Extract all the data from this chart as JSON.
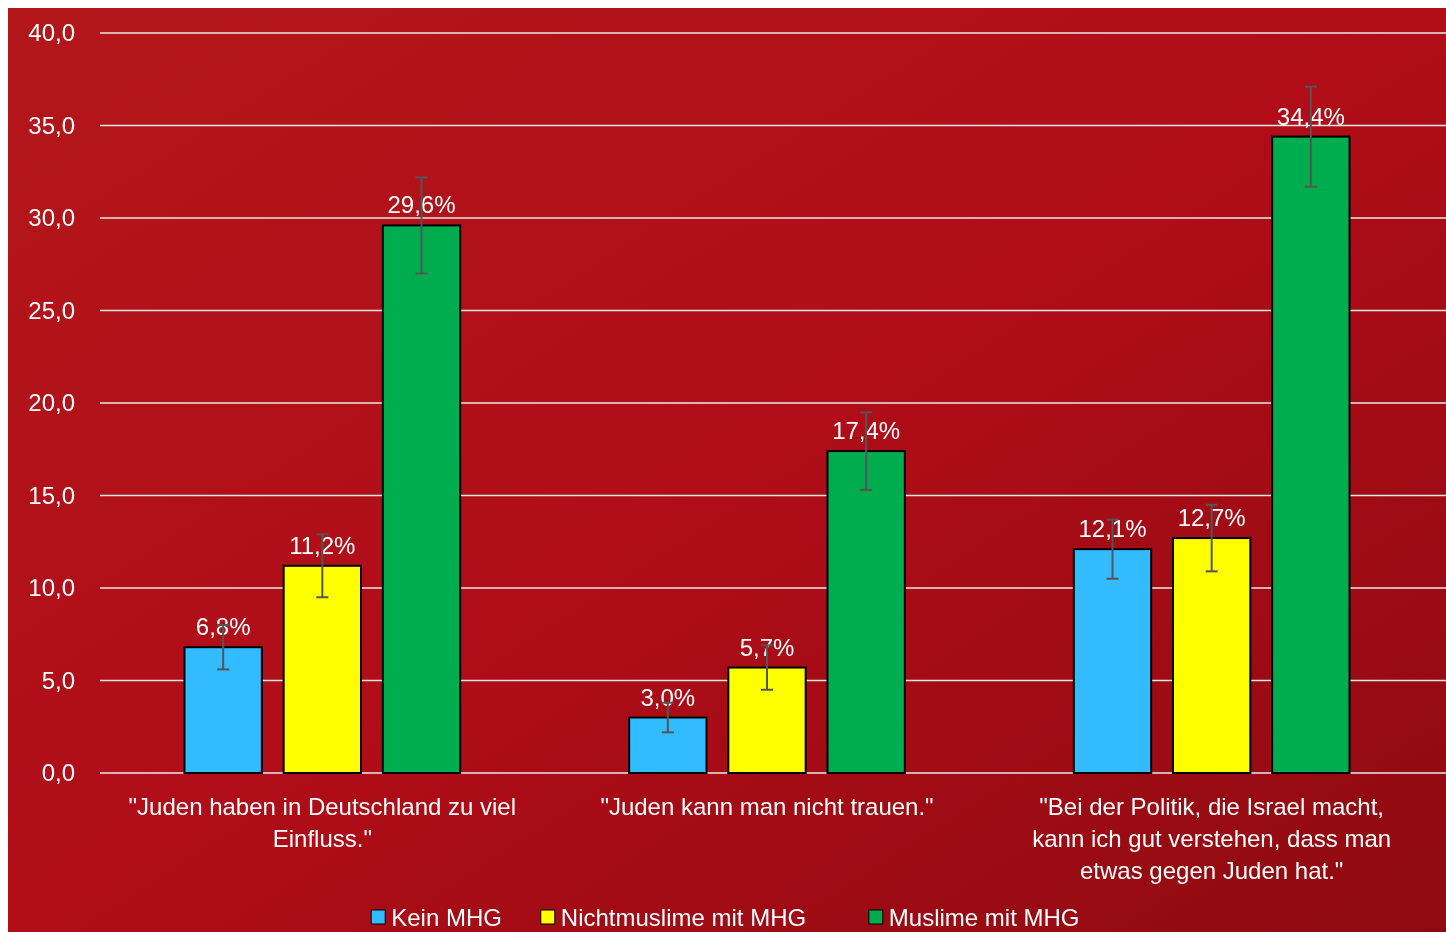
{
  "chart_data": {
    "type": "bar",
    "categories": [
      "\"Juden haben in Deutschland zu viel Einfluss.\"",
      "\"Juden kann man nicht trauen.\"",
      "\"Bei der Politik, die Israel macht, kann ich gut verstehen, dass man etwas gegen Juden hat.\""
    ],
    "series": [
      {
        "name": "Kein MHG",
        "color": "#33bbff",
        "values": [
          6.8,
          3.0,
          12.1
        ],
        "errors": [
          [
            5.6,
            8.0
          ],
          [
            2.2,
            3.8
          ],
          [
            10.5,
            13.7
          ]
        ],
        "value_labels": [
          "6,8%",
          "3,0%",
          "12,1%"
        ]
      },
      {
        "name": "Nichtmuslime mit MHG",
        "color": "#ffff00",
        "values": [
          11.2,
          5.7,
          12.7
        ],
        "errors": [
          [
            9.5,
            12.9
          ],
          [
            4.5,
            6.9
          ],
          [
            10.9,
            14.5
          ]
        ],
        "value_labels": [
          "11,2%",
          "5,7%",
          "12,7%"
        ]
      },
      {
        "name": "Muslime mit MHG",
        "color": "#00ad4e",
        "values": [
          29.6,
          17.4,
          34.4
        ],
        "errors": [
          [
            27.0,
            32.2
          ],
          [
            15.3,
            19.5
          ],
          [
            31.7,
            37.1
          ]
        ],
        "value_labels": [
          "29,6%",
          "17,4%",
          "34,4%"
        ]
      }
    ],
    "ylim": [
      0,
      40
    ],
    "yticks": [
      {
        "value": 0,
        "label": "0,0"
      },
      {
        "value": 5,
        "label": "5,0"
      },
      {
        "value": 10,
        "label": "10,0"
      },
      {
        "value": 15,
        "label": "15,0"
      },
      {
        "value": 20,
        "label": "20,0"
      },
      {
        "value": 25,
        "label": "25,0"
      },
      {
        "value": 30,
        "label": "30,0"
      },
      {
        "value": 35,
        "label": "35,0"
      },
      {
        "value": 40,
        "label": "40,0"
      }
    ],
    "grid": "y",
    "legend": "bottom"
  }
}
